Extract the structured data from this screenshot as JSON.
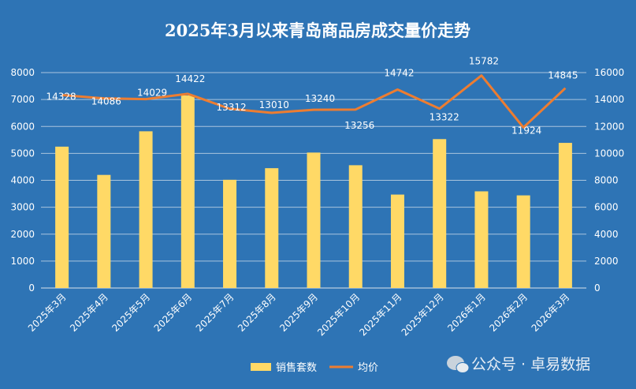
{
  "chart_data": {
    "type": "bar+line",
    "title": "2025年3月以来青岛商品房成交量价走势",
    "categories": [
      "2025年3月",
      "2025年4月",
      "2025年5月",
      "2025年6月",
      "2025年7月",
      "2025年8月",
      "2025年9月",
      "2025年10月",
      "2025年11月",
      "2025年12月",
      "2026年1月",
      "2026年2月",
      "2026年3月"
    ],
    "left_axis": {
      "ylim": [
        0,
        8000
      ],
      "ticks": [
        "0",
        "1000",
        "2000",
        "3000",
        "4000",
        "5000",
        "6000",
        "7000",
        "8000"
      ]
    },
    "right_axis": {
      "ylim": [
        0,
        16000
      ],
      "ticks": [
        "0",
        "2000",
        "4000",
        "6000",
        "8000",
        "10000",
        "12000",
        "14000",
        "16000"
      ]
    },
    "series": [
      {
        "name": "销售套数",
        "type": "bar",
        "axis": "left",
        "color": "#ffd966",
        "values": [
          5250,
          4200,
          5820,
          7150,
          4020,
          4450,
          5030,
          4560,
          3470,
          5530,
          3590,
          3440,
          5390
        ]
      },
      {
        "name": "均价",
        "type": "line",
        "axis": "right",
        "color": "#ed7d31",
        "values": [
          14328,
          14086,
          14029,
          14422,
          13312,
          13010,
          13240,
          13256,
          14742,
          13322,
          15782,
          11924,
          14845
        ],
        "labels": [
          "14328",
          "14086",
          "14029",
          "14422",
          "13312",
          "13010",
          "13240",
          "13256",
          "14742",
          "13322",
          "15782",
          "11924",
          "14845"
        ]
      }
    ],
    "grid": true,
    "legend_position": "bottom",
    "watermark": "公众号 · 卓易数据"
  }
}
